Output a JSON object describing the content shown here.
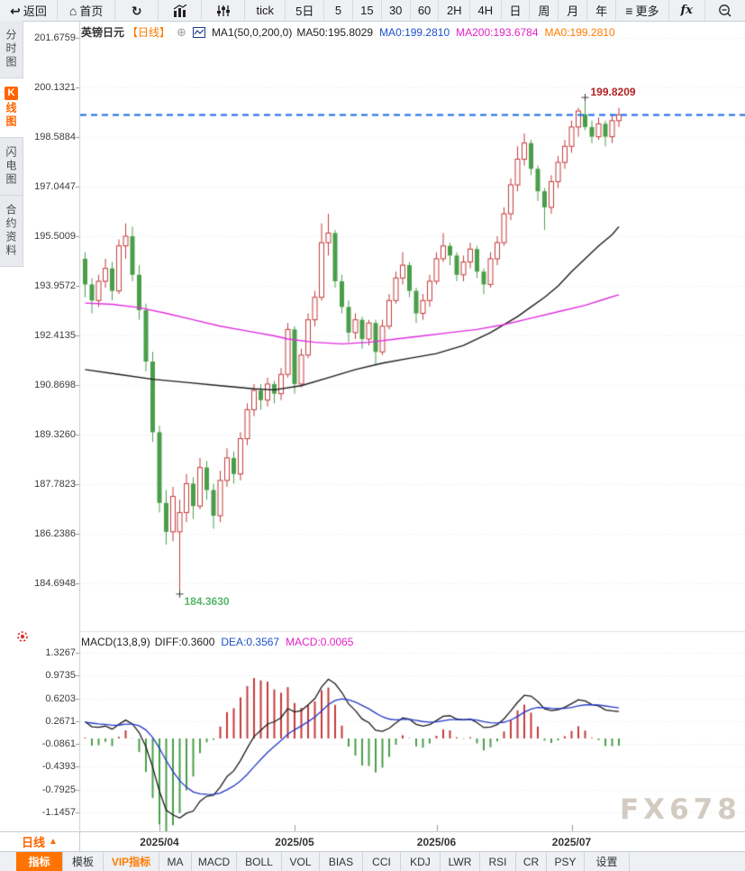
{
  "toolbar": {
    "items": [
      {
        "label": "返回"
      },
      {
        "label": "首页"
      },
      {
        "label": ""
      },
      {
        "label": ""
      },
      {
        "label": ""
      },
      {
        "label": "tick"
      },
      {
        "label": "5日"
      },
      {
        "label": "5"
      },
      {
        "label": "15"
      },
      {
        "label": "30"
      },
      {
        "label": "60"
      },
      {
        "label": "2H"
      },
      {
        "label": "4H"
      },
      {
        "label": "日"
      },
      {
        "label": "周"
      },
      {
        "label": "月"
      },
      {
        "label": "年"
      },
      {
        "label": "更多"
      },
      {
        "label": "fx"
      },
      {
        "label": ""
      }
    ]
  },
  "sidebar": {
    "items": [
      {
        "label": "分时图",
        "active": false
      },
      {
        "label": "线图",
        "badge": "K",
        "active": true
      },
      {
        "label": "闪电图",
        "active": false
      },
      {
        "label": "合约资料",
        "active": false
      }
    ]
  },
  "chart": {
    "title": "英镑日元",
    "period_tag": "【日线】",
    "ma_header": {
      "ma1": "MA1(50,0,200,0)",
      "ma50": "MA50:195.8029",
      "ma0_blue": "MA0:199.2810",
      "ma200": "MA200:193.6784",
      "ma0_orange": "MA0:199.2810"
    },
    "high_annotation": "199.8209",
    "low_annotation": "184.3630",
    "price_axis_labels": [
      "201.6759",
      "200.1321",
      "198.5884",
      "197.0447",
      "195.5009",
      "193.9572",
      "192.4135",
      "190.8698",
      "189.3260",
      "187.7823",
      "186.2386",
      "184.6948"
    ]
  },
  "macd_panel": {
    "header": {
      "params": "MACD(13,8,9)",
      "diff": "DIFF:0.3600",
      "dea": "DEA:0.3567",
      "macd": "MACD:0.0065"
    },
    "axis_labels": [
      "1.3267",
      "0.9735",
      "0.6203",
      "0.2671",
      "-0.0861",
      "-0.4393",
      "-0.7925",
      "-1.1457"
    ]
  },
  "bottom": {
    "period_selector": "日线",
    "period_arrow": "▲",
    "tabs": [
      {
        "label": "指标",
        "state": "active"
      },
      {
        "label": "模板",
        "state": "normal"
      },
      {
        "label": "VIP指标",
        "state": "vip"
      },
      {
        "label": "MA",
        "state": "normal"
      },
      {
        "label": "MACD",
        "state": "normal"
      },
      {
        "label": "BOLL",
        "state": "normal"
      },
      {
        "label": "VOL",
        "state": "normal"
      },
      {
        "label": "BIAS",
        "state": "normal"
      },
      {
        "label": "CCI",
        "state": "normal"
      },
      {
        "label": "KDJ",
        "state": "normal"
      },
      {
        "label": "LWR",
        "state": "normal"
      },
      {
        "label": "RSI",
        "state": "normal"
      },
      {
        "label": "CR",
        "state": "normal"
      },
      {
        "label": "PSY",
        "state": "normal"
      },
      {
        "label": "设置",
        "state": "normal"
      }
    ]
  },
  "watermark": "FX678",
  "chart_data": {
    "type": "candlestick+macd",
    "symbol": "英镑日元",
    "period": "日线",
    "price_axis": [
      201.6759,
      200.1321,
      198.5884,
      197.0447,
      195.5009,
      193.9572,
      192.4135,
      190.8698,
      189.326,
      187.7823,
      186.2386,
      184.6948
    ],
    "macd_axis": [
      1.3267,
      0.9735,
      0.6203,
      0.2671,
      -0.0861,
      -0.4393,
      -0.7925,
      -1.1457
    ],
    "current_price": 199.281,
    "high_marker": {
      "index": 74,
      "price": 199.8209
    },
    "low_marker": {
      "index": 14,
      "price": 184.363
    },
    "months": [
      {
        "label": "2025/04",
        "index": 11
      },
      {
        "label": "2025/05",
        "index": 31
      },
      {
        "label": "2025/06",
        "index": 52
      },
      {
        "label": "2025/07",
        "index": 72
      }
    ],
    "candles": [
      [
        194.8,
        195.0,
        193.6,
        194.0
      ],
      [
        194.0,
        194.2,
        193.1,
        193.5
      ],
      [
        193.5,
        194.3,
        193.3,
        194.1
      ],
      [
        194.1,
        194.8,
        193.9,
        194.5
      ],
      [
        194.5,
        194.7,
        193.5,
        193.8
      ],
      [
        193.8,
        195.4,
        193.7,
        195.2
      ],
      [
        195.2,
        195.9,
        194.8,
        195.5
      ],
      [
        195.5,
        195.8,
        194.1,
        194.3
      ],
      [
        194.3,
        194.6,
        192.9,
        193.2
      ],
      [
        193.2,
        193.4,
        191.3,
        191.6
      ],
      [
        191.6,
        191.9,
        189.1,
        189.4
      ],
      [
        189.4,
        189.6,
        186.9,
        187.2
      ],
      [
        187.2,
        187.6,
        185.9,
        186.3
      ],
      [
        186.3,
        187.7,
        186.0,
        187.4
      ],
      [
        186.3,
        187.3,
        184.363,
        186.9
      ],
      [
        186.9,
        188.1,
        186.6,
        187.8
      ],
      [
        187.8,
        188.0,
        186.7,
        187.1
      ],
      [
        187.1,
        188.6,
        187.0,
        188.3
      ],
      [
        188.3,
        188.5,
        187.3,
        187.6
      ],
      [
        187.6,
        187.8,
        186.4,
        186.8
      ],
      [
        186.8,
        188.2,
        186.6,
        187.9
      ],
      [
        187.9,
        188.9,
        187.7,
        188.6
      ],
      [
        188.6,
        188.8,
        187.8,
        188.1
      ],
      [
        188.1,
        189.4,
        187.9,
        189.2
      ],
      [
        189.2,
        190.3,
        189.0,
        190.1
      ],
      [
        190.1,
        190.9,
        189.9,
        190.7
      ],
      [
        190.7,
        190.9,
        190.1,
        190.4
      ],
      [
        190.4,
        191.1,
        190.2,
        190.9
      ],
      [
        190.9,
        191.0,
        190.3,
        190.6
      ],
      [
        190.6,
        191.4,
        190.4,
        191.2
      ],
      [
        191.2,
        192.8,
        191.1,
        192.6
      ],
      [
        192.6,
        192.7,
        190.6,
        190.9
      ],
      [
        190.9,
        192.0,
        190.8,
        191.8
      ],
      [
        191.8,
        193.1,
        191.7,
        192.9
      ],
      [
        192.9,
        193.8,
        192.7,
        193.6
      ],
      [
        193.6,
        195.9,
        193.5,
        195.3
      ],
      [
        195.3,
        196.2,
        194.9,
        195.6
      ],
      [
        195.6,
        195.7,
        193.9,
        194.1
      ],
      [
        194.1,
        194.3,
        193.1,
        193.3
      ],
      [
        193.3,
        193.5,
        192.2,
        192.5
      ],
      [
        192.5,
        193.1,
        192.3,
        192.9
      ],
      [
        192.9,
        193.0,
        192.0,
        192.3
      ],
      [
        192.3,
        192.9,
        192.1,
        192.8
      ],
      [
        192.8,
        192.9,
        191.5,
        191.9
      ],
      [
        191.9,
        192.9,
        191.8,
        192.7
      ],
      [
        192.7,
        193.7,
        192.6,
        193.5
      ],
      [
        193.5,
        194.4,
        193.4,
        194.2
      ],
      [
        194.2,
        195.0,
        194.0,
        194.6
      ],
      [
        194.6,
        194.7,
        193.6,
        193.8
      ],
      [
        193.8,
        193.9,
        192.8,
        193.1
      ],
      [
        193.1,
        193.7,
        192.9,
        193.5
      ],
      [
        193.5,
        194.3,
        193.3,
        194.1
      ],
      [
        194.1,
        195.0,
        194.0,
        194.8
      ],
      [
        194.8,
        195.6,
        194.7,
        195.2
      ],
      [
        195.2,
        195.3,
        194.6,
        194.9
      ],
      [
        194.9,
        195.0,
        194.1,
        194.3
      ],
      [
        194.3,
        194.9,
        194.1,
        194.7
      ],
      [
        194.7,
        195.3,
        194.5,
        195.1
      ],
      [
        195.1,
        195.2,
        194.2,
        194.4
      ],
      [
        194.4,
        194.5,
        193.7,
        194.0
      ],
      [
        194.0,
        195.0,
        193.9,
        194.8
      ],
      [
        194.8,
        195.5,
        194.6,
        195.3
      ],
      [
        195.3,
        196.4,
        195.2,
        196.2
      ],
      [
        196.2,
        197.3,
        196.0,
        197.1
      ],
      [
        197.1,
        198.3,
        196.9,
        197.9
      ],
      [
        197.9,
        198.7,
        197.7,
        198.4
      ],
      [
        198.4,
        198.5,
        197.4,
        197.6
      ],
      [
        197.6,
        197.7,
        196.6,
        196.9
      ],
      [
        196.9,
        197.0,
        195.7,
        196.4
      ],
      [
        196.4,
        197.4,
        196.2,
        197.2
      ],
      [
        197.2,
        198.0,
        197.0,
        197.8
      ],
      [
        197.8,
        198.5,
        197.6,
        198.3
      ],
      [
        198.3,
        199.1,
        198.1,
        198.9
      ],
      [
        198.9,
        199.5,
        198.6,
        199.4
      ],
      [
        199.3,
        199.8209,
        198.8,
        198.9
      ],
      [
        198.9,
        199.1,
        198.4,
        198.6
      ],
      [
        198.6,
        199.2,
        198.5,
        199.0
      ],
      [
        199.0,
        199.1,
        198.3,
        198.6
      ],
      [
        198.6,
        199.3,
        198.4,
        199.1
      ],
      [
        199.1,
        199.5,
        198.9,
        199.281
      ]
    ],
    "ma50_points": [
      [
        0,
        191.35
      ],
      [
        5,
        191.2
      ],
      [
        10,
        191.05
      ],
      [
        15,
        190.95
      ],
      [
        20,
        190.85
      ],
      [
        25,
        190.75
      ],
      [
        28,
        190.72
      ],
      [
        32,
        190.85
      ],
      [
        36,
        191.1
      ],
      [
        40,
        191.35
      ],
      [
        44,
        191.55
      ],
      [
        48,
        191.7
      ],
      [
        52,
        191.85
      ],
      [
        56,
        192.1
      ],
      [
        60,
        192.5
      ],
      [
        64,
        193.0
      ],
      [
        66,
        193.3
      ],
      [
        68,
        193.6
      ],
      [
        70,
        193.95
      ],
      [
        72,
        194.4
      ],
      [
        74,
        194.8
      ],
      [
        76,
        195.2
      ],
      [
        78,
        195.55
      ],
      [
        79,
        195.8
      ]
    ],
    "ma200_points": [
      [
        0,
        193.42
      ],
      [
        4,
        193.38
      ],
      [
        8,
        193.28
      ],
      [
        12,
        193.1
      ],
      [
        16,
        192.9
      ],
      [
        20,
        192.7
      ],
      [
        24,
        192.55
      ],
      [
        28,
        192.4
      ],
      [
        30,
        192.3
      ],
      [
        34,
        192.2
      ],
      [
        38,
        192.15
      ],
      [
        42,
        192.2
      ],
      [
        46,
        192.3
      ],
      [
        50,
        192.4
      ],
      [
        54,
        192.5
      ],
      [
        58,
        192.6
      ],
      [
        62,
        192.75
      ],
      [
        66,
        192.95
      ],
      [
        70,
        193.15
      ],
      [
        74,
        193.35
      ],
      [
        77,
        193.55
      ],
      [
        79,
        193.68
      ]
    ],
    "macd_values": {
      "diff": 0.36,
      "dea": 0.3567,
      "macd": 0.0065
    },
    "colors": {
      "up": "#c43b3b",
      "down": "#4a9e4a",
      "ma50": "#1a1a1a",
      "ma200": "#e02ce0",
      "diff_line": "#1a1a1a",
      "dea_line": "#2438c8",
      "current_line": "#1668e6",
      "grid": "#e4e4e4",
      "axis_tick": "#999999"
    }
  }
}
